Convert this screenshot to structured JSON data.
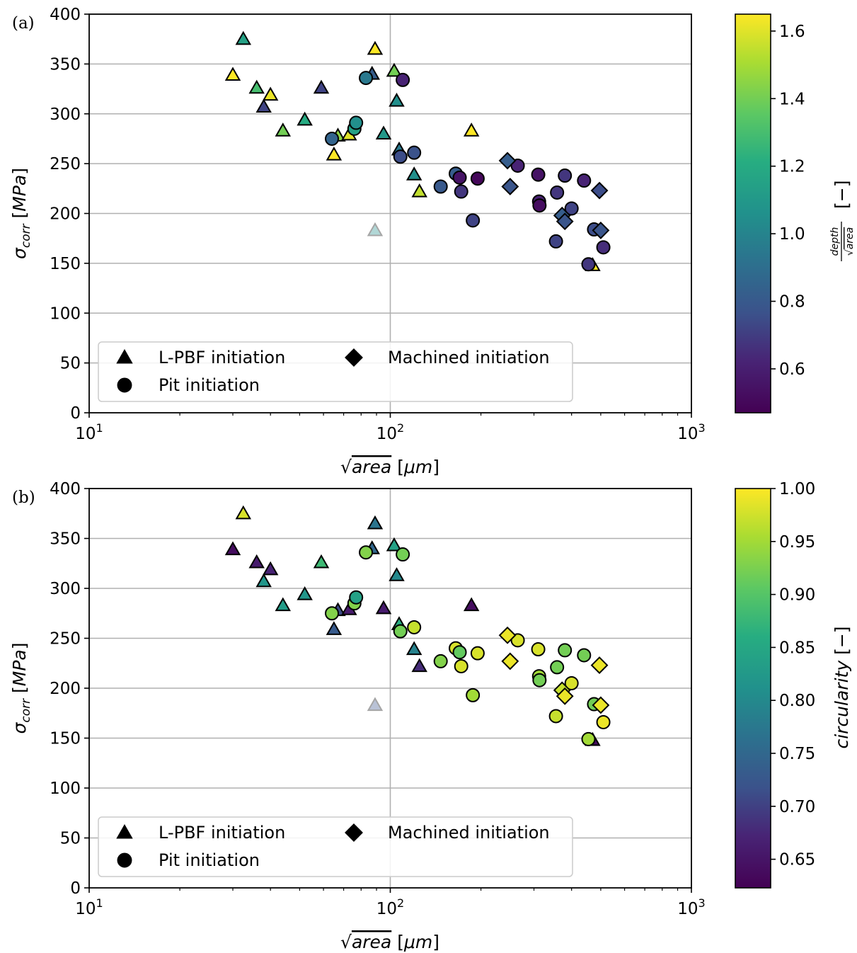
{
  "chart_data": [
    {
      "panel_label": "(a)",
      "type": "scatter",
      "xlabel": "√area [μm]",
      "ylabel": "σcorr [MPa]",
      "xscale": "log",
      "xlim": [
        10,
        1000
      ],
      "ylim": [
        0,
        400
      ],
      "x_tick_labels": [
        "10^1",
        "10^2",
        "10^3"
      ],
      "y_ticks": [
        0,
        50,
        100,
        150,
        200,
        250,
        300,
        350,
        400
      ],
      "grid": "major",
      "legend": {
        "placement": "lower-left",
        "entries": [
          "L-PBF initiation",
          "Pit initiation",
          "Machined initiation"
        ]
      },
      "colorbar": {
        "label": "depth/√area [−]",
        "range": [
          0.47,
          1.65
        ],
        "ticks": [
          0.6,
          0.8,
          1.0,
          1.2,
          1.4,
          1.6
        ],
        "tick_labels": [
          "0.6",
          "0.8",
          "1.0",
          "1.2",
          "1.4",
          "1.6"
        ],
        "colormap": "viridis"
      },
      "series": [
        {
          "name": "L-PBF initiation",
          "marker": "triangle",
          "points": [
            {
              "x": 30,
              "y": 339,
              "c": 1.65
            },
            {
              "x": 32.5,
              "y": 375,
              "c": 1.15
            },
            {
              "x": 36,
              "y": 326,
              "c": 1.3
            },
            {
              "x": 38,
              "y": 307,
              "c": 0.72
            },
            {
              "x": 40,
              "y": 319,
              "c": 1.62
            },
            {
              "x": 44,
              "y": 283,
              "c": 1.4
            },
            {
              "x": 52,
              "y": 294,
              "c": 1.2
            },
            {
              "x": 59,
              "y": 326,
              "c": 0.72
            },
            {
              "x": 65,
              "y": 259,
              "c": 1.65
            },
            {
              "x": 67,
              "y": 278,
              "c": 1.45
            },
            {
              "x": 73,
              "y": 279,
              "c": 1.6
            },
            {
              "x": 87,
              "y": 340,
              "c": 0.82
            },
            {
              "x": 89,
              "y": 365,
              "c": 1.65
            },
            {
              "x": 95,
              "y": 280,
              "c": 1.1
            },
            {
              "x": 103,
              "y": 343,
              "c": 1.4
            },
            {
              "x": 105,
              "y": 313,
              "c": 1.05
            },
            {
              "x": 107,
              "y": 264,
              "c": 0.95
            },
            {
              "x": 120,
              "y": 239,
              "c": 1.05
            },
            {
              "x": 125,
              "y": 222,
              "c": 1.55
            },
            {
              "x": 186,
              "y": 283,
              "c": 1.65
            },
            {
              "x": 470,
              "y": 148,
              "c": 1.65
            }
          ]
        },
        {
          "name": "Pit initiation",
          "marker": "circle",
          "points": [
            {
              "x": 64,
              "y": 275,
              "c": 0.85
            },
            {
              "x": 76,
              "y": 285,
              "c": 1.15
            },
            {
              "x": 77,
              "y": 291,
              "c": 1.05
            },
            {
              "x": 83,
              "y": 336,
              "c": 0.95
            },
            {
              "x": 108,
              "y": 257,
              "c": 0.75
            },
            {
              "x": 110,
              "y": 334,
              "c": 0.62
            },
            {
              "x": 120,
              "y": 261,
              "c": 0.77
            },
            {
              "x": 147,
              "y": 227,
              "c": 0.8
            },
            {
              "x": 165,
              "y": 240,
              "c": 0.82
            },
            {
              "x": 170,
              "y": 236,
              "c": 0.55
            },
            {
              "x": 172,
              "y": 222,
              "c": 0.68
            },
            {
              "x": 188,
              "y": 193,
              "c": 0.72
            },
            {
              "x": 195,
              "y": 235,
              "c": 0.5
            },
            {
              "x": 265,
              "y": 248,
              "c": 0.62
            },
            {
              "x": 310,
              "y": 239,
              "c": 0.55
            },
            {
              "x": 312,
              "y": 212,
              "c": 0.6
            },
            {
              "x": 313,
              "y": 208,
              "c": 0.52
            },
            {
              "x": 355,
              "y": 172,
              "c": 0.72
            },
            {
              "x": 358,
              "y": 221,
              "c": 0.68
            },
            {
              "x": 380,
              "y": 238,
              "c": 0.68
            },
            {
              "x": 400,
              "y": 205,
              "c": 0.72
            },
            {
              "x": 440,
              "y": 233,
              "c": 0.62
            },
            {
              "x": 455,
              "y": 149,
              "c": 0.68
            },
            {
              "x": 475,
              "y": 184,
              "c": 0.75
            },
            {
              "x": 510,
              "y": 166,
              "c": 0.65
            }
          ]
        },
        {
          "name": "Machined initiation",
          "marker": "diamond",
          "points": [
            {
              "x": 245,
              "y": 253,
              "c": 0.82
            },
            {
              "x": 250,
              "y": 227,
              "c": 0.78
            },
            {
              "x": 372,
              "y": 198,
              "c": 0.82
            },
            {
              "x": 380,
              "y": 192,
              "c": 0.78
            },
            {
              "x": 495,
              "y": 223,
              "c": 0.75
            },
            {
              "x": 500,
              "y": 183,
              "c": 0.78
            }
          ]
        },
        {
          "name": "",
          "marker": "triangle",
          "faded": true,
          "points": [
            {
              "x": 89,
              "y": 183,
              "c": 1.05
            }
          ]
        }
      ]
    },
    {
      "panel_label": "(b)",
      "type": "scatter",
      "xlabel": "√area [μm]",
      "ylabel": "σcorr [MPa]",
      "xscale": "log",
      "xlim": [
        10,
        1000
      ],
      "ylim": [
        0,
        400
      ],
      "x_tick_labels": [
        "10^1",
        "10^2",
        "10^3"
      ],
      "y_ticks": [
        0,
        50,
        100,
        150,
        200,
        250,
        300,
        350,
        400
      ],
      "grid": "major",
      "legend": {
        "placement": "lower-left",
        "entries": [
          "L-PBF initiation",
          "Pit initiation",
          "Machined initiation"
        ]
      },
      "colorbar": {
        "label": "circularity [−]",
        "range": [
          0.623,
          1.0
        ],
        "ticks": [
          0.65,
          0.7,
          0.75,
          0.8,
          0.85,
          0.9,
          0.95,
          1.0
        ],
        "tick_labels": [
          "0.65",
          "0.70",
          "0.75",
          "0.80",
          "0.85",
          "0.90",
          "0.95",
          "1.00"
        ],
        "colormap": "viridis"
      },
      "series": [
        {
          "name": "L-PBF initiation",
          "marker": "triangle",
          "points": [
            {
              "x": 30,
              "y": 339,
              "c": 0.64
            },
            {
              "x": 32.5,
              "y": 375,
              "c": 0.98
            },
            {
              "x": 36,
              "y": 326,
              "c": 0.66
            },
            {
              "x": 38,
              "y": 307,
              "c": 0.82
            },
            {
              "x": 40,
              "y": 319,
              "c": 0.67
            },
            {
              "x": 44,
              "y": 283,
              "c": 0.83
            },
            {
              "x": 52,
              "y": 294,
              "c": 0.82
            },
            {
              "x": 59,
              "y": 326,
              "c": 0.88
            },
            {
              "x": 65,
              "y": 259,
              "c": 0.73
            },
            {
              "x": 67,
              "y": 278,
              "c": 0.71
            },
            {
              "x": 73,
              "y": 279,
              "c": 0.66
            },
            {
              "x": 87,
              "y": 340,
              "c": 0.75
            },
            {
              "x": 89,
              "y": 365,
              "c": 0.77
            },
            {
              "x": 95,
              "y": 280,
              "c": 0.66
            },
            {
              "x": 103,
              "y": 343,
              "c": 0.84
            },
            {
              "x": 105,
              "y": 313,
              "c": 0.8
            },
            {
              "x": 107,
              "y": 264,
              "c": 0.86
            },
            {
              "x": 120,
              "y": 239,
              "c": 0.79
            },
            {
              "x": 125,
              "y": 222,
              "c": 0.68
            },
            {
              "x": 186,
              "y": 283,
              "c": 0.64
            },
            {
              "x": 470,
              "y": 148,
              "c": 0.64
            }
          ]
        },
        {
          "name": "Pit initiation",
          "marker": "circle",
          "points": [
            {
              "x": 64,
              "y": 275,
              "c": 0.93
            },
            {
              "x": 76,
              "y": 285,
              "c": 0.93
            },
            {
              "x": 77,
              "y": 291,
              "c": 0.84
            },
            {
              "x": 83,
              "y": 336,
              "c": 0.93
            },
            {
              "x": 108,
              "y": 257,
              "c": 0.92
            },
            {
              "x": 110,
              "y": 334,
              "c": 0.92
            },
            {
              "x": 120,
              "y": 261,
              "c": 0.97
            },
            {
              "x": 147,
              "y": 227,
              "c": 0.93
            },
            {
              "x": 165,
              "y": 240,
              "c": 0.98
            },
            {
              "x": 170,
              "y": 236,
              "c": 0.91
            },
            {
              "x": 172,
              "y": 222,
              "c": 0.98
            },
            {
              "x": 188,
              "y": 193,
              "c": 0.95
            },
            {
              "x": 195,
              "y": 235,
              "c": 0.98
            },
            {
              "x": 265,
              "y": 248,
              "c": 0.98
            },
            {
              "x": 310,
              "y": 239,
              "c": 0.98
            },
            {
              "x": 312,
              "y": 212,
              "c": 0.95
            },
            {
              "x": 313,
              "y": 208,
              "c": 0.92
            },
            {
              "x": 355,
              "y": 172,
              "c": 0.97
            },
            {
              "x": 358,
              "y": 221,
              "c": 0.92
            },
            {
              "x": 380,
              "y": 238,
              "c": 0.92
            },
            {
              "x": 400,
              "y": 205,
              "c": 0.98
            },
            {
              "x": 440,
              "y": 233,
              "c": 0.92
            },
            {
              "x": 455,
              "y": 149,
              "c": 0.95
            },
            {
              "x": 475,
              "y": 184,
              "c": 0.92
            },
            {
              "x": 510,
              "y": 166,
              "c": 0.99
            }
          ]
        },
        {
          "name": "Machined initiation",
          "marker": "diamond",
          "points": [
            {
              "x": 245,
              "y": 253,
              "c": 0.99
            },
            {
              "x": 250,
              "y": 227,
              "c": 0.99
            },
            {
              "x": 372,
              "y": 198,
              "c": 0.97
            },
            {
              "x": 380,
              "y": 192,
              "c": 0.99
            },
            {
              "x": 495,
              "y": 223,
              "c": 0.99
            },
            {
              "x": 500,
              "y": 183,
              "c": 0.99
            }
          ]
        },
        {
          "name": "",
          "marker": "triangle",
          "faded": true,
          "points": [
            {
              "x": 89,
              "y": 183,
              "c": 0.72
            }
          ]
        }
      ]
    }
  ]
}
